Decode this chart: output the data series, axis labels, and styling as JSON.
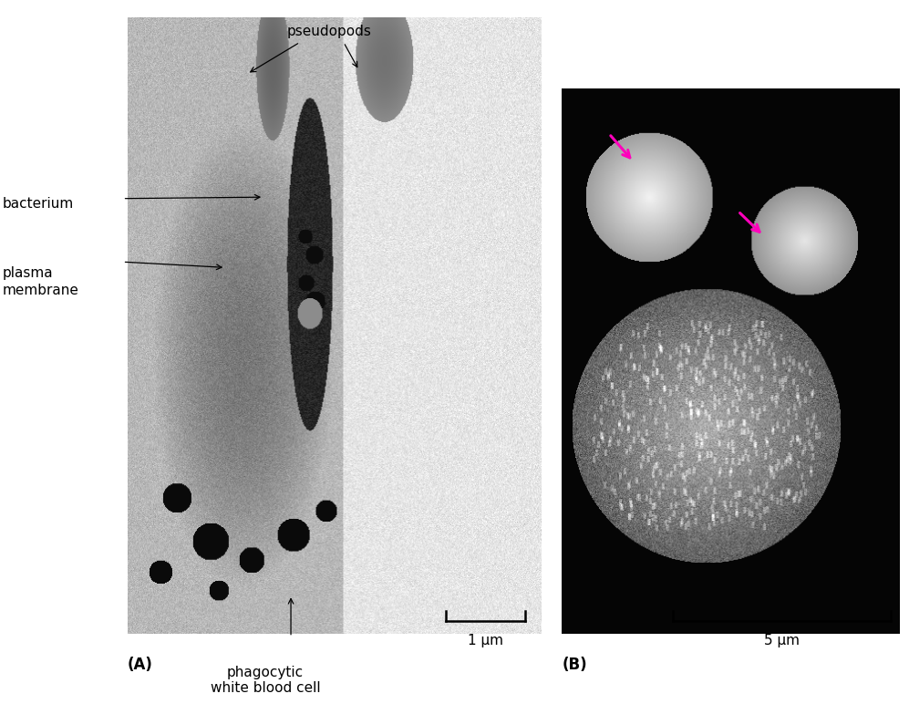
{
  "bg_color": "#ffffff",
  "fig_width": 9.97,
  "fig_height": 7.72,
  "dpi": 100,
  "panel_A_label": "(A)",
  "panel_B_label": "(B)",
  "label_pseudopods": "pseudopods",
  "label_bacterium": "bacterium",
  "label_plasma_membrane": "plasma\nmembrane",
  "label_phagocytic": "phagocytic\nwhite blood cell",
  "scale_A_text": "1 μm",
  "scale_B_text": "5 μm",
  "arrow_color": "#ff00bb",
  "label_color": "#000000",
  "font_size_labels": 11,
  "font_size_panel": 12
}
